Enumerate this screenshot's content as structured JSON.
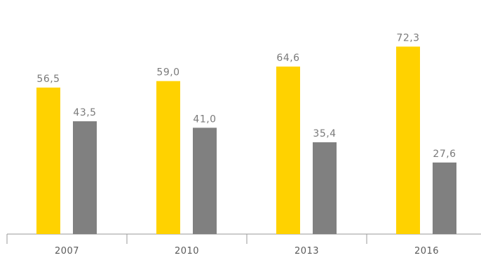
{
  "chart_data": {
    "type": "bar",
    "title": "",
    "xlabel": "",
    "ylabel": "",
    "categories": [
      "2007",
      "2010",
      "2013",
      "2016"
    ],
    "series": [
      {
        "values": [
          56.5,
          59.0,
          64.6,
          72.3
        ],
        "value_labels": [
          "56,5",
          "59,0",
          "64,6",
          "72,3"
        ],
        "color": "#FFD200"
      },
      {
        "values": [
          43.5,
          41.0,
          35.4,
          27.6
        ],
        "value_labels": [
          "43,5",
          "41,0",
          "35,4",
          "27,6"
        ],
        "color": "#808080"
      }
    ],
    "ylim": [
      0,
      80
    ],
    "grid": false,
    "legend": "none"
  }
}
